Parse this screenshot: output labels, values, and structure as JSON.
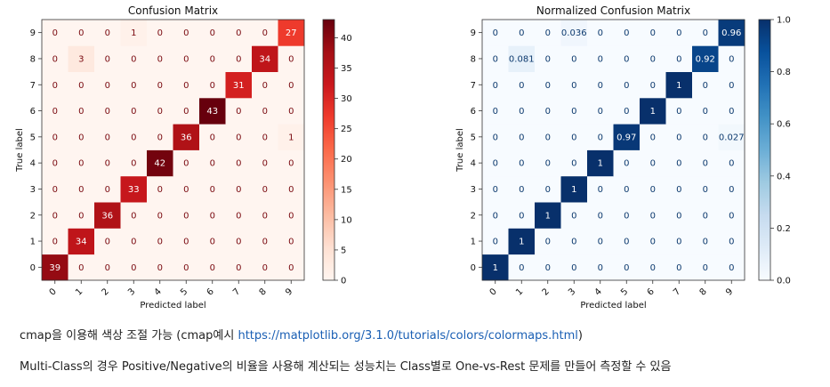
{
  "chart_data": [
    {
      "type": "heatmap",
      "title": "Confusion Matrix",
      "xlabel": "Predicted label",
      "ylabel": "True label",
      "x_ticks": [
        "0",
        "1",
        "2",
        "3",
        "4",
        "5",
        "6",
        "7",
        "8",
        "9"
      ],
      "y_ticks": [
        "0",
        "1",
        "2",
        "3",
        "4",
        "5",
        "6",
        "7",
        "8",
        "9"
      ],
      "cmap": "Reds",
      "colorbar": {
        "min": 0,
        "max": 43,
        "ticks": [
          "0",
          "5",
          "10",
          "15",
          "20",
          "25",
          "30",
          "35",
          "40"
        ]
      },
      "matrix": [
        [
          "39",
          "0",
          "0",
          "0",
          "0",
          "0",
          "0",
          "0",
          "0",
          "0"
        ],
        [
          "0",
          "34",
          "0",
          "0",
          "0",
          "0",
          "0",
          "0",
          "0",
          "0"
        ],
        [
          "0",
          "0",
          "36",
          "0",
          "0",
          "0",
          "0",
          "0",
          "0",
          "0"
        ],
        [
          "0",
          "0",
          "0",
          "33",
          "0",
          "0",
          "0",
          "0",
          "0",
          "0"
        ],
        [
          "0",
          "0",
          "0",
          "0",
          "42",
          "0",
          "0",
          "0",
          "0",
          "0"
        ],
        [
          "0",
          "0",
          "0",
          "0",
          "0",
          "36",
          "0",
          "0",
          "0",
          "1"
        ],
        [
          "0",
          "0",
          "0",
          "0",
          "0",
          "0",
          "43",
          "0",
          "0",
          "0"
        ],
        [
          "0",
          "0",
          "0",
          "0",
          "0",
          "0",
          "0",
          "31",
          "0",
          "0"
        ],
        [
          "0",
          "3",
          "0",
          "0",
          "0",
          "0",
          "0",
          "0",
          "34",
          "0"
        ],
        [
          "0",
          "0",
          "0",
          "1",
          "0",
          "0",
          "0",
          "0",
          "0",
          "27"
        ]
      ]
    },
    {
      "type": "heatmap",
      "title": "Normalized Confusion Matrix",
      "xlabel": "Predicted label",
      "ylabel": "True label",
      "x_ticks": [
        "0",
        "1",
        "2",
        "3",
        "4",
        "5",
        "6",
        "7",
        "8",
        "9"
      ],
      "y_ticks": [
        "0",
        "1",
        "2",
        "3",
        "4",
        "5",
        "6",
        "7",
        "8",
        "9"
      ],
      "cmap": "Blues",
      "colorbar": {
        "min": 0,
        "max": 1,
        "ticks": [
          "0.0",
          "0.2",
          "0.4",
          "0.6",
          "0.8",
          "1.0"
        ]
      },
      "matrix": [
        [
          "1",
          "0",
          "0",
          "0",
          "0",
          "0",
          "0",
          "0",
          "0",
          "0"
        ],
        [
          "0",
          "1",
          "0",
          "0",
          "0",
          "0",
          "0",
          "0",
          "0",
          "0"
        ],
        [
          "0",
          "0",
          "1",
          "0",
          "0",
          "0",
          "0",
          "0",
          "0",
          "0"
        ],
        [
          "0",
          "0",
          "0",
          "1",
          "0",
          "0",
          "0",
          "0",
          "0",
          "0"
        ],
        [
          "0",
          "0",
          "0",
          "0",
          "1",
          "0",
          "0",
          "0",
          "0",
          "0"
        ],
        [
          "0",
          "0",
          "0",
          "0",
          "0",
          "0.97",
          "0",
          "0",
          "0",
          "0.027"
        ],
        [
          "0",
          "0",
          "0",
          "0",
          "0",
          "0",
          "1",
          "0",
          "0",
          "0"
        ],
        [
          "0",
          "0",
          "0",
          "0",
          "0",
          "0",
          "0",
          "1",
          "0",
          "0"
        ],
        [
          "0",
          "0.081",
          "0",
          "0",
          "0",
          "0",
          "0",
          "0",
          "0.92",
          "0"
        ],
        [
          "0",
          "0",
          "0",
          "0.036",
          "0",
          "0",
          "0",
          "0",
          "0",
          "0.96"
        ]
      ]
    }
  ],
  "text": {
    "line1_prefix": "cmap을 이용해 색상 조절 가능 (cmap예시 ",
    "line1_link": "https://matplotlib.org/3.1.0/tutorials/colors/colormaps.html",
    "line1_suffix": ")",
    "line2": "Multi-Class의 경우 Positive/Negative의 비율을 사용해 계산되는 성능치는 Class별로 One-vs-Rest 문제를 만들어 측정할 수 있음"
  }
}
